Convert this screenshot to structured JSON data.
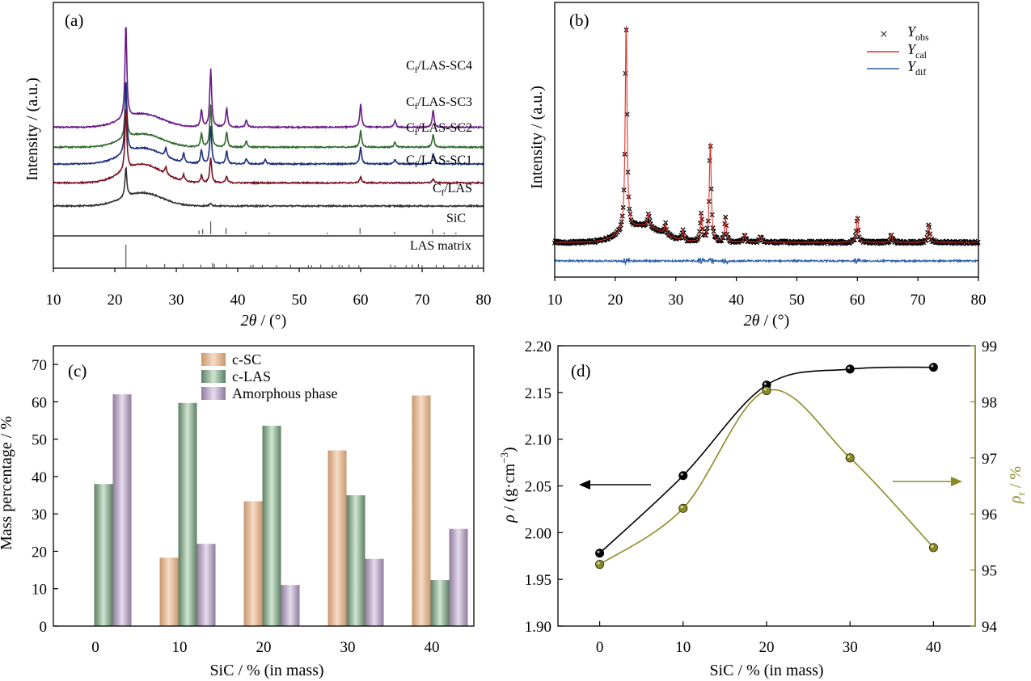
{
  "colors": {
    "axis": "#000000",
    "sc4": "#6a1a86",
    "sc3": "#2f6b2c",
    "sc2": "#1c2f7a",
    "sc1": "#7a1220",
    "las": "#333333",
    "ref": "#555555",
    "obs": "#000000",
    "cal": "#e0302c",
    "dif": "#2b5ea8",
    "bar_sc": "#e2b48e",
    "bar_las": "#86a98c",
    "bar_amo": "#b7a4c2",
    "density": "#000000",
    "relative": "#8b8a22"
  },
  "chart_data": [
    {
      "panel": "(a)",
      "type": "line",
      "xlabel_sym": "2θ",
      "xlabel_rest": " / (°)",
      "ylabel": "Intensity / (a.u.)",
      "xlim": [
        10,
        80
      ],
      "xticks": [
        "10",
        "20",
        "30",
        "40",
        "50",
        "60",
        "70",
        "80"
      ],
      "series": [
        {
          "name": "Cf/LAS-SC4",
          "label_main": "C",
          "label_sub": "f",
          "label_rest": "/LAS-SC4",
          "color_key": "sc4",
          "baseline": 0.75,
          "amorph": 0.5,
          "sic_scale": 1.0,
          "peaks": [
            {
              "x": 21.8,
              "h": 9
            },
            {
              "x": 34.1,
              "h": 1.6
            },
            {
              "x": 35.6,
              "h": 5.5
            },
            {
              "x": 38.2,
              "h": 1.8
            },
            {
              "x": 41.4,
              "h": 0.7
            },
            {
              "x": 60.0,
              "h": 2.2
            },
            {
              "x": 65.6,
              "h": 0.6
            },
            {
              "x": 71.8,
              "h": 1.6
            }
          ]
        },
        {
          "name": "Cf/LAS-SC3",
          "label_main": "C",
          "label_sub": "f",
          "label_rest": "/LAS-SC3",
          "color_key": "sc3",
          "baseline": 0.56,
          "amorph": 0.5,
          "sic_scale": 0.9,
          "peaks": [
            {
              "x": 21.8,
              "h": 5
            },
            {
              "x": 34.1,
              "h": 1.3
            },
            {
              "x": 35.6,
              "h": 4.0
            },
            {
              "x": 38.2,
              "h": 1.4
            },
            {
              "x": 41.4,
              "h": 0.6
            },
            {
              "x": 60.0,
              "h": 1.6
            },
            {
              "x": 65.6,
              "h": 0.5
            },
            {
              "x": 71.8,
              "h": 1.2
            }
          ]
        },
        {
          "name": "Cf/LAS-SC2",
          "label_main": "C",
          "label_sub": "f",
          "label_rest": "/LAS-SC2",
          "color_key": "sc2",
          "baseline": 0.4,
          "amorph": 0.6,
          "sic_scale": 1.0,
          "peaks": [
            {
              "x": 21.8,
              "h": 7
            },
            {
              "x": 28.3,
              "h": 0.8
            },
            {
              "x": 31.2,
              "h": 0.9
            },
            {
              "x": 34.1,
              "h": 1.3
            },
            {
              "x": 35.6,
              "h": 3.6
            },
            {
              "x": 38.2,
              "h": 1.2
            },
            {
              "x": 41.4,
              "h": 0.5
            },
            {
              "x": 44.5,
              "h": 0.4
            },
            {
              "x": 60.0,
              "h": 1.6
            },
            {
              "x": 65.6,
              "h": 0.4
            },
            {
              "x": 71.8,
              "h": 1.0
            }
          ]
        },
        {
          "name": "Cf/LAS-SC1",
          "label_main": "C",
          "label_sub": "f",
          "label_rest": "/LAS-SC1",
          "color_key": "sc1",
          "baseline": 0.22,
          "amorph": 0.7,
          "sic_scale": 1.0,
          "peaks": [
            {
              "x": 21.8,
              "h": 6
            },
            {
              "x": 28.3,
              "h": 0.7
            },
            {
              "x": 31.2,
              "h": 0.6
            },
            {
              "x": 34.1,
              "h": 0.7
            },
            {
              "x": 35.6,
              "h": 2.4
            },
            {
              "x": 38.2,
              "h": 0.6
            },
            {
              "x": 60.0,
              "h": 0.6
            },
            {
              "x": 71.8,
              "h": 0.4
            }
          ]
        },
        {
          "name": "Cf/LAS",
          "label_main": "C",
          "label_sub": "f",
          "label_rest": "/LAS",
          "color_key": "las",
          "baseline": 0.0,
          "amorph": 0.5,
          "sic_scale": 1.0,
          "peaks": [
            {
              "x": 21.8,
              "h": 2.8
            },
            {
              "x": 35.6,
              "h": 0.3
            }
          ]
        }
      ],
      "reference_sic": {
        "label": "SiC",
        "lines": [
          {
            "x": 33.7,
            "h": 0.3
          },
          {
            "x": 34.3,
            "h": 0.4
          },
          {
            "x": 35.6,
            "h": 1.0
          },
          {
            "x": 38.1,
            "h": 0.5
          },
          {
            "x": 41.3,
            "h": 0.2
          },
          {
            "x": 45.1,
            "h": 0.12
          },
          {
            "x": 54.6,
            "h": 0.12
          },
          {
            "x": 59.9,
            "h": 0.5
          },
          {
            "x": 65.5,
            "h": 0.2
          },
          {
            "x": 71.7,
            "h": 0.4
          },
          {
            "x": 73.6,
            "h": 0.15
          },
          {
            "x": 75.5,
            "h": 0.12
          }
        ]
      },
      "reference_las": {
        "label": "LAS matrix",
        "lines": [
          {
            "x": 21.8,
            "h": 1.0
          },
          {
            "x": 25.2,
            "h": 0.12
          },
          {
            "x": 28.1,
            "h": 0.15
          },
          {
            "x": 31.1,
            "h": 0.15
          },
          {
            "x": 34.0,
            "h": 0.12
          },
          {
            "x": 35.9,
            "h": 0.2
          },
          {
            "x": 36.2,
            "h": 0.15
          },
          {
            "x": 38.2,
            "h": 0.15
          },
          {
            "x": 42.1,
            "h": 0.1
          },
          {
            "x": 42.5,
            "h": 0.12
          },
          {
            "x": 44.0,
            "h": 0.1
          },
          {
            "x": 46.3,
            "h": 0.1
          },
          {
            "x": 48.6,
            "h": 0.12
          },
          {
            "x": 51.5,
            "h": 0.1
          },
          {
            "x": 52.0,
            "h": 0.1
          },
          {
            "x": 53.5,
            "h": 0.12
          },
          {
            "x": 55.4,
            "h": 0.1
          },
          {
            "x": 56.5,
            "h": 0.12
          },
          {
            "x": 57.0,
            "h": 0.1
          },
          {
            "x": 58.1,
            "h": 0.12
          },
          {
            "x": 59.7,
            "h": 0.1
          },
          {
            "x": 64.9,
            "h": 0.12
          },
          {
            "x": 65.6,
            "h": 0.1
          },
          {
            "x": 67.4,
            "h": 0.1
          },
          {
            "x": 68.4,
            "h": 0.12
          },
          {
            "x": 69.4,
            "h": 0.15
          },
          {
            "x": 70.0,
            "h": 0.1
          },
          {
            "x": 72.3,
            "h": 0.12
          },
          {
            "x": 73.5,
            "h": 0.1
          },
          {
            "x": 76.0,
            "h": 0.12
          },
          {
            "x": 77.0,
            "h": 0.1
          },
          {
            "x": 78.2,
            "h": 0.12
          },
          {
            "x": 79.1,
            "h": 0.1
          }
        ]
      }
    },
    {
      "panel": "(b)",
      "type": "scatter",
      "xlabel_sym": "2θ",
      "xlabel_rest": " / (°)",
      "ylabel": "Intensity / (a.u.)",
      "xlim": [
        10,
        80
      ],
      "xticks": [
        "10",
        "20",
        "30",
        "40",
        "50",
        "60",
        "70",
        "80"
      ],
      "legend": [
        {
          "name": "Yobs",
          "main": "Y",
          "sub": "obs",
          "marker": "×",
          "color_key": "obs"
        },
        {
          "name": "Ycal",
          "main": "Y",
          "sub": "cal",
          "color_key": "cal"
        },
        {
          "name": "Ydif",
          "main": "Y",
          "sub": "dif",
          "color_key": "dif"
        }
      ],
      "peaks": [
        {
          "x": 21.8,
          "h": 9.5
        },
        {
          "x": 25.5,
          "h": 0.6
        },
        {
          "x": 28.3,
          "h": 0.5
        },
        {
          "x": 31.2,
          "h": 0.5
        },
        {
          "x": 34.2,
          "h": 1.3
        },
        {
          "x": 35.7,
          "h": 4.6
        },
        {
          "x": 38.2,
          "h": 1.1
        },
        {
          "x": 41.4,
          "h": 0.4
        },
        {
          "x": 44.0,
          "h": 0.3
        },
        {
          "x": 60.0,
          "h": 1.2
        },
        {
          "x": 65.6,
          "h": 0.4
        },
        {
          "x": 71.8,
          "h": 0.8
        }
      ]
    },
    {
      "panel": "(c)",
      "type": "bar",
      "xlabel": "SiC / % (in mass)",
      "ylabel": "Mass percentage / %",
      "categories": [
        "0",
        "10",
        "20",
        "30",
        "40"
      ],
      "ylim": [
        0,
        75
      ],
      "yticks": [
        "0",
        "10",
        "20",
        "30",
        "40",
        "50",
        "60",
        "70"
      ],
      "legend_position": "top-center",
      "series": [
        {
          "name": "c-SC",
          "color_key": "bar_sc",
          "values": [
            0,
            18.3,
            33.4,
            47.0,
            61.7
          ]
        },
        {
          "name": "c-LAS",
          "color_key": "bar_las",
          "values": [
            38.0,
            59.7,
            53.6,
            35.0,
            12.3
          ]
        },
        {
          "name": "Amorphous phase",
          "color_key": "bar_amo",
          "values": [
            62.0,
            22.0,
            11.0,
            18.0,
            26.0
          ]
        }
      ]
    },
    {
      "panel": "(d)",
      "type": "line",
      "xlabel": "SiC / % (in mass)",
      "ylabel_left_sym": "ρ",
      "ylabel_left_rest": " / (g·cm",
      "ylabel_left_sup": "−3",
      "ylabel_left_end": ")",
      "ylabel_right_sym": "ρ",
      "ylabel_right_sub": "r",
      "ylabel_right_rest": " / %",
      "x": [
        0,
        10,
        20,
        30,
        40
      ],
      "xlim": [
        -5,
        45
      ],
      "xticks": [
        "0",
        "10",
        "20",
        "30",
        "40"
      ],
      "ylim_left": [
        1.9,
        2.2
      ],
      "yticks_left": [
        "1.90",
        "1.95",
        "2.00",
        "2.05",
        "2.10",
        "2.15",
        "2.20"
      ],
      "ylim_right": [
        94,
        99
      ],
      "yticks_right": [
        "94",
        "95",
        "96",
        "97",
        "98",
        "99"
      ],
      "series": [
        {
          "name": "ρ",
          "axis": "left",
          "color_key": "density",
          "values": [
            1.978,
            2.061,
            2.158,
            2.175,
            2.177
          ]
        },
        {
          "name": "ρr",
          "axis": "right",
          "color_key": "relative",
          "values": [
            95.1,
            96.1,
            98.2,
            97.0,
            95.4
          ]
        }
      ]
    }
  ]
}
